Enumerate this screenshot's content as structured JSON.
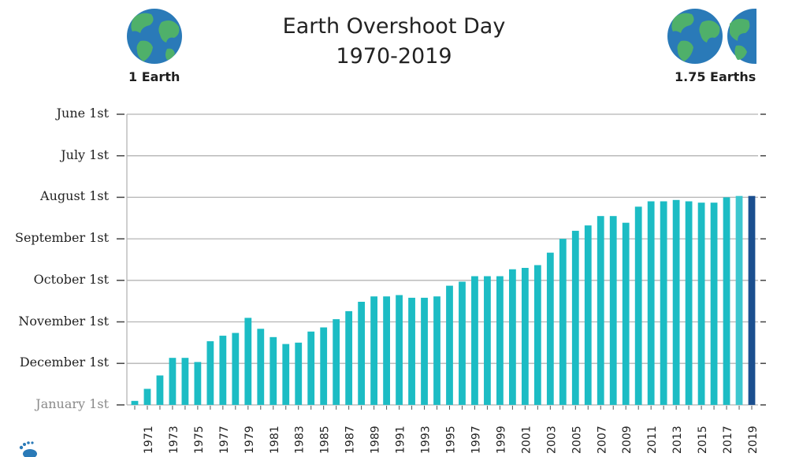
{
  "header": {
    "title_line1": "Earth Overshoot Day",
    "title_line2": "1970-2019",
    "left_globe_label": "1 Earth",
    "right_globe_label": "1.75 Earths",
    "globe_icon": "earth-globe-icon",
    "logo_icon": "footprint-logo-icon"
  },
  "colors": {
    "bar": "#1cbcc4",
    "bar_highlight": "#1b4f8f",
    "bar_light": "#3cc7cf",
    "grid": "#b5b5b5",
    "ocean": "#2a7ab8",
    "land": "#4fb06a"
  },
  "chart_data": {
    "type": "bar",
    "title": "Earth Overshoot Day",
    "subtitle": "1970-2019",
    "y_axis_reversed": true,
    "y_axis_unit": "date of Overshoot Day",
    "yticks": [
      "June 1st",
      "July 1st",
      "August 1st",
      "September 1st",
      "October 1st",
      "November 1st",
      "December 1st",
      "January 1st"
    ],
    "ylim": [
      "June 1st",
      "January 1st"
    ],
    "xtick_labels": [
      "1971",
      "1973",
      "1975",
      "1977",
      "1979",
      "1981",
      "1983",
      "1985",
      "1987",
      "1989",
      "1991",
      "1993",
      "1995",
      "1997",
      "1999",
      "2001",
      "2003",
      "2005",
      "2007",
      "2009",
      "2011",
      "2013",
      "2015",
      "2017",
      "2019"
    ],
    "grid": true,
    "categories": [
      "1970",
      "1971",
      "1972",
      "1973",
      "1974",
      "1975",
      "1976",
      "1977",
      "1978",
      "1979",
      "1980",
      "1981",
      "1982",
      "1983",
      "1984",
      "1985",
      "1986",
      "1987",
      "1988",
      "1989",
      "1990",
      "1991",
      "1992",
      "1993",
      "1994",
      "1995",
      "1996",
      "1997",
      "1998",
      "1999",
      "2000",
      "2001",
      "2002",
      "2003",
      "2004",
      "2005",
      "2006",
      "2007",
      "2008",
      "2009",
      "2010",
      "2011",
      "2012",
      "2013",
      "2014",
      "2015",
      "2016",
      "2017",
      "2018",
      "2019"
    ],
    "values": [
      "Dec 29",
      "Dec 20",
      "Dec 10",
      "Nov 27",
      "Nov 27",
      "Nov 30",
      "Nov 15",
      "Nov 11",
      "Nov 9",
      "Oct 29",
      "Nov 6",
      "Nov 12",
      "Nov 17",
      "Nov 16",
      "Nov 8",
      "Nov 5",
      "Oct 30",
      "Oct 24",
      "Oct 17",
      "Oct 13",
      "Oct 13",
      "Oct 12",
      "Oct 14",
      "Oct 14",
      "Oct 13",
      "Oct 5",
      "Oct 2",
      "Sep 28",
      "Sep 28",
      "Sep 28",
      "Sep 23",
      "Sep 22",
      "Sep 20",
      "Sep 11",
      "Sep 1",
      "Aug 26",
      "Aug 22",
      "Aug 15",
      "Aug 15",
      "Aug 20",
      "Aug 8",
      "Aug 4",
      "Aug 4",
      "Aug 3",
      "Aug 4",
      "Aug 5",
      "Aug 5",
      "Aug 1",
      "Jul 31",
      "Jul 31"
    ],
    "highlight_last": true
  }
}
